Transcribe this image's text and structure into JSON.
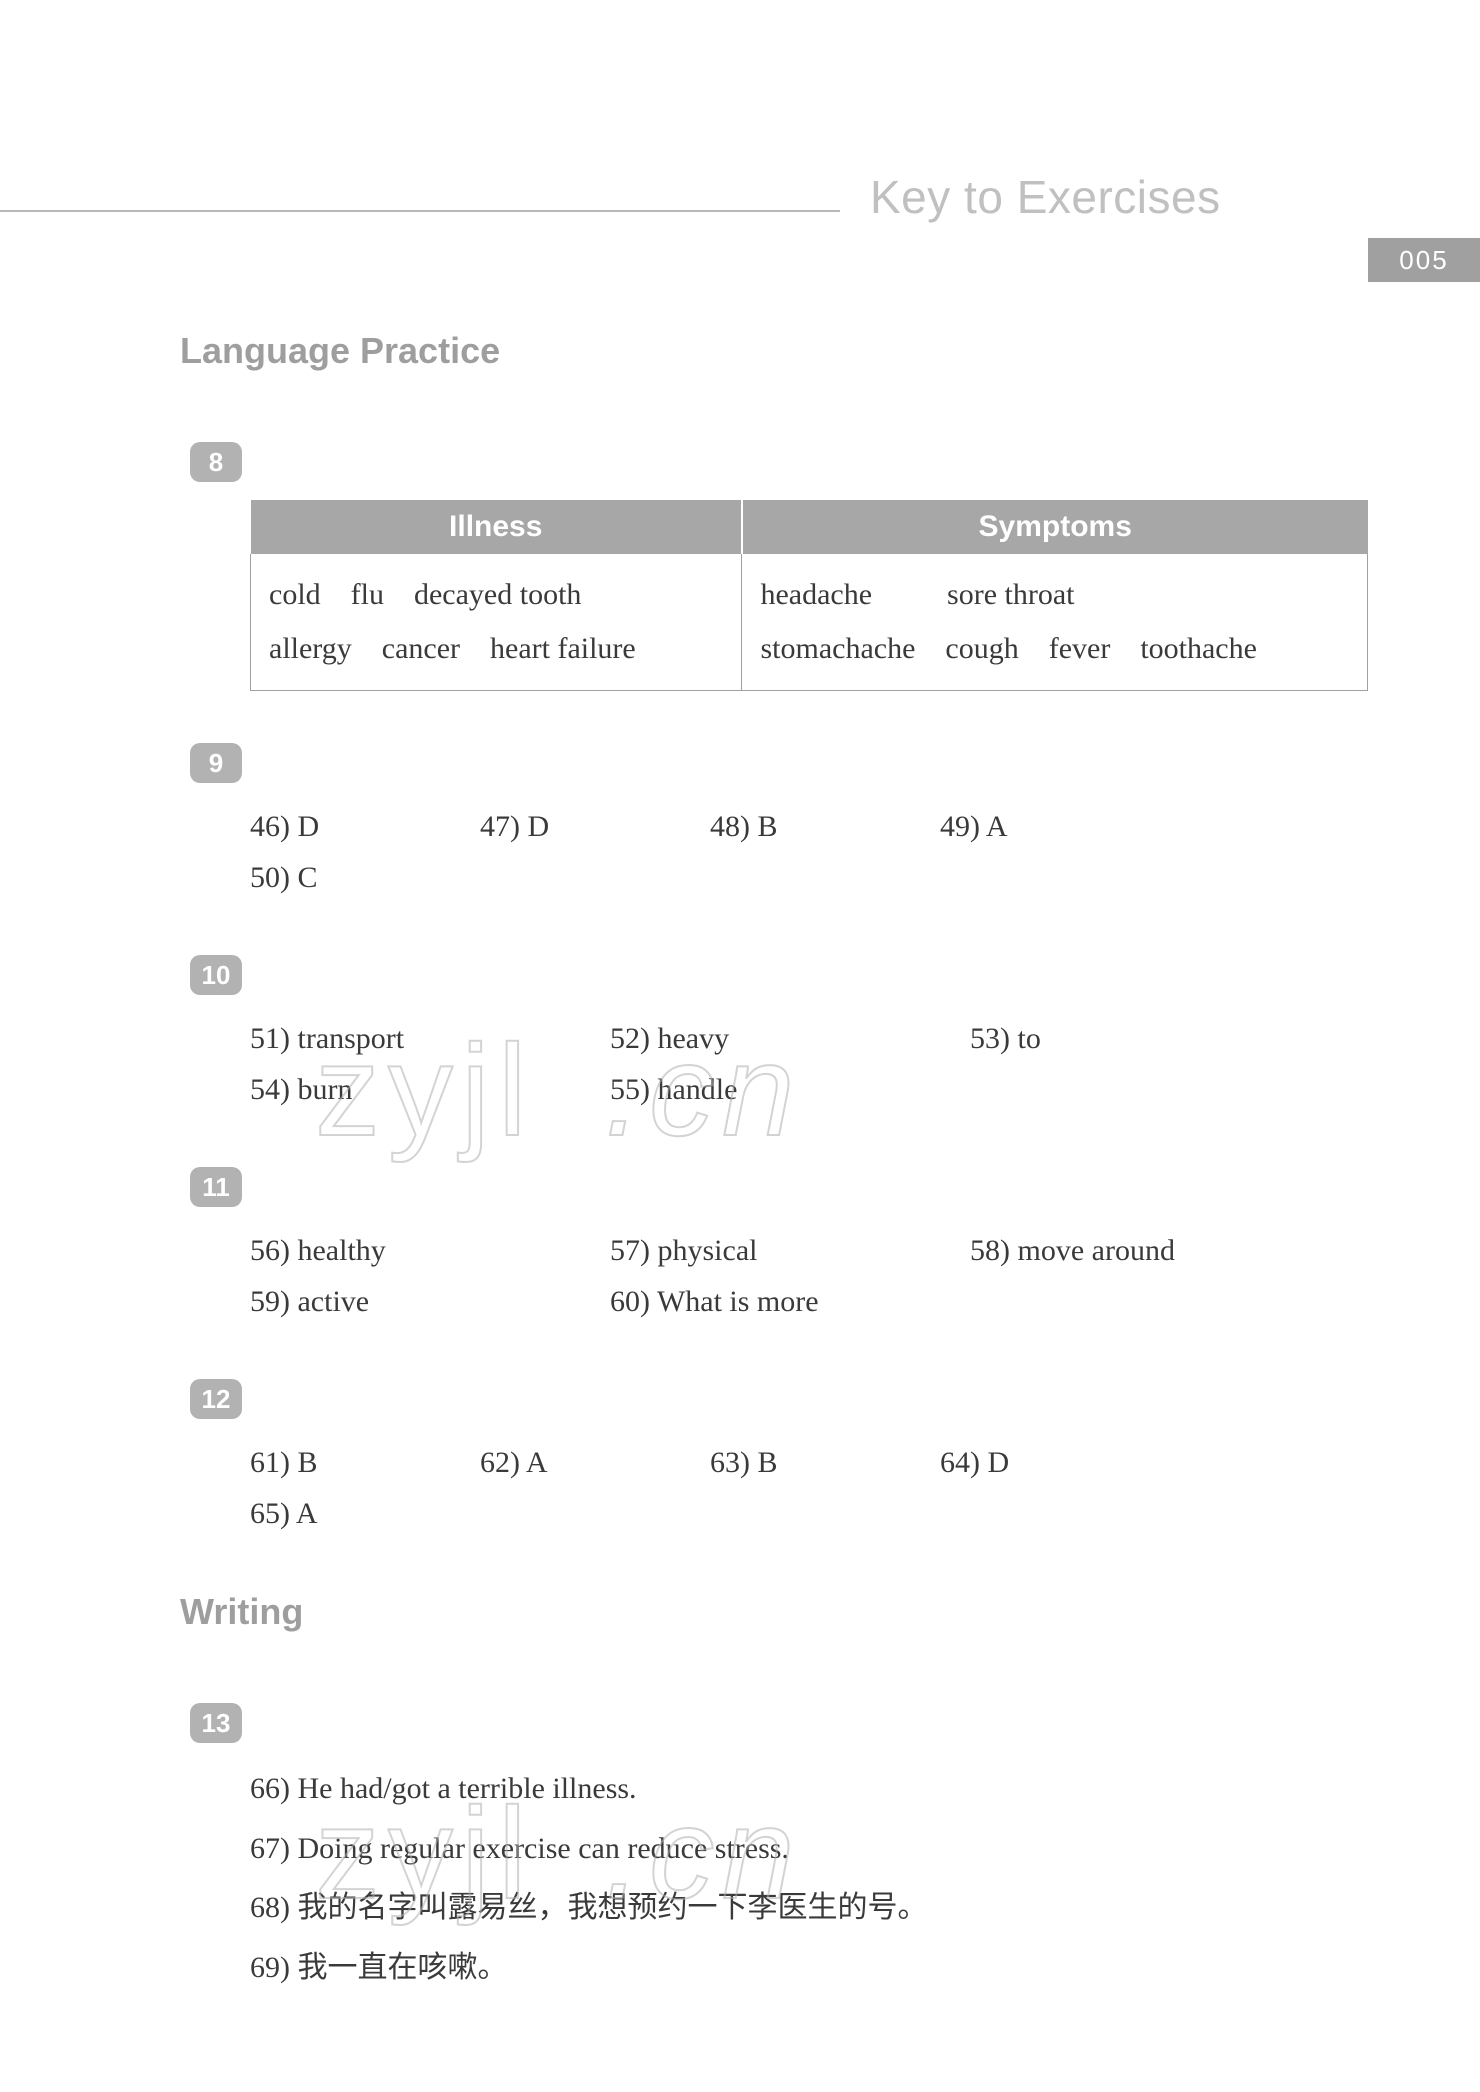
{
  "header": {
    "title": "Key to Exercises",
    "page_num": "005"
  },
  "sections": {
    "lang_practice": "Language Practice",
    "writing": "Writing"
  },
  "q8": {
    "badge": "8",
    "headers": [
      "Illness",
      "Symptoms"
    ],
    "cells": [
      "cold    flu    decayed tooth\nallergy    cancer    heart failure",
      "headache          sore throat\nstomachache    cough    fever    toothache"
    ]
  },
  "q9": {
    "badge": "9",
    "items": [
      {
        "n": "46)",
        "a": "D"
      },
      {
        "n": "47)",
        "a": "D"
      },
      {
        "n": "48)",
        "a": "B"
      },
      {
        "n": "49)",
        "a": "A"
      },
      {
        "n": "50)",
        "a": "C"
      }
    ]
  },
  "q10": {
    "badge": "10",
    "items": [
      {
        "n": "51)",
        "a": "transport"
      },
      {
        "n": "52)",
        "a": "heavy"
      },
      {
        "n": "53)",
        "a": "to"
      },
      {
        "n": "54)",
        "a": "burn"
      },
      {
        "n": "55)",
        "a": "handle"
      }
    ]
  },
  "q11": {
    "badge": "11",
    "items": [
      {
        "n": "56)",
        "a": "healthy"
      },
      {
        "n": "57)",
        "a": "physical"
      },
      {
        "n": "58)",
        "a": "move around"
      },
      {
        "n": "59)",
        "a": "active"
      },
      {
        "n": "60)",
        "a": "What is more"
      }
    ]
  },
  "q12": {
    "badge": "12",
    "items": [
      {
        "n": "61)",
        "a": "B"
      },
      {
        "n": "62)",
        "a": "A"
      },
      {
        "n": "63)",
        "a": "B"
      },
      {
        "n": "64)",
        "a": "D"
      },
      {
        "n": "65)",
        "a": "A"
      }
    ]
  },
  "q13": {
    "badge": "13",
    "lines": [
      "66)  He had/got a terrible illness.",
      "67)  Doing regular exercise can reduce stress.",
      "68)  我的名字叫露易丝，我想预约一下李医生的号。",
      "69)  我一直在咳嗽。"
    ]
  },
  "watermark": "zyjl.cn",
  "style": {
    "body_font_size": 30,
    "heading_color": "#9e9e9e",
    "badge_bg": "#b2b2b2",
    "table_header_bg": "#a7a7a7",
    "page_tab_bg": "#a0a0a0",
    "text_color": "#3a3a3a",
    "rule_color": "#b8b8b8",
    "page_bg": "#ffffff"
  }
}
